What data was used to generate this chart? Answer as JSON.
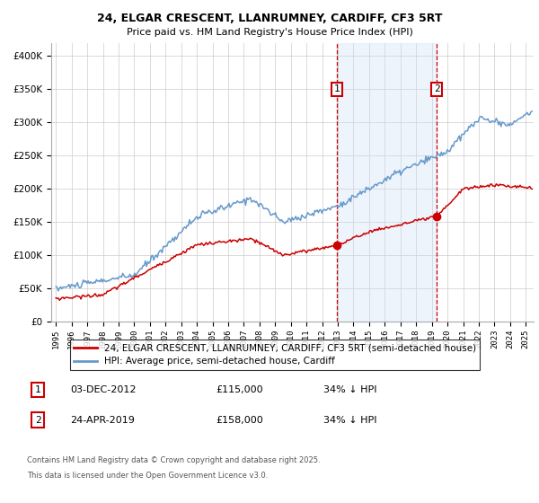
{
  "title_line1": "24, ELGAR CRESCENT, LLANRUMNEY, CARDIFF, CF3 5RT",
  "title_line2": "Price paid vs. HM Land Registry's House Price Index (HPI)",
  "legend1": "24, ELGAR CRESCENT, LLANRUMNEY, CARDIFF, CF3 5RT (semi-detached house)",
  "legend2": "HPI: Average price, semi-detached house, Cardiff",
  "annotation1_date": "03-DEC-2012",
  "annotation1_price": "£115,000",
  "annotation1_hpi": "34% ↓ HPI",
  "annotation2_date": "24-APR-2019",
  "annotation2_price": "£158,000",
  "annotation2_hpi": "34% ↓ HPI",
  "footnote1": "Contains HM Land Registry data © Crown copyright and database right 2025.",
  "footnote2": "This data is licensed under the Open Government Licence v3.0.",
  "sale1_year": 2012.92,
  "sale2_year": 2019.31,
  "sale1_price": 115000,
  "sale2_price": 158000,
  "red_color": "#cc0000",
  "blue_color": "#6699cc",
  "shade_color": "#cce0f5",
  "background_color": "#ffffff",
  "ylim": [
    0,
    420000
  ],
  "xlim_start": 1994.7,
  "xlim_end": 2025.5
}
